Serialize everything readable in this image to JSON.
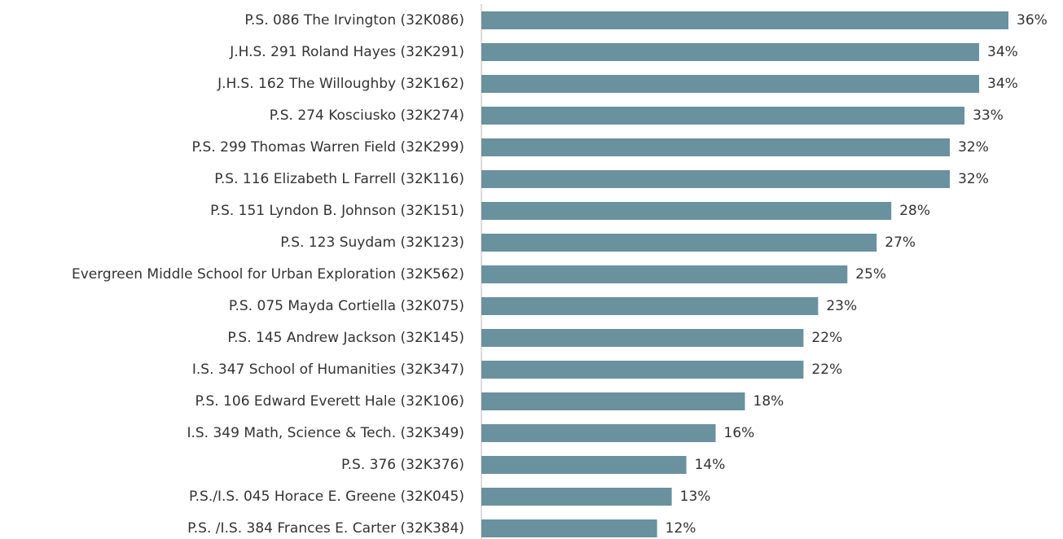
{
  "chart_data": {
    "type": "barh",
    "categories": [
      "P.S. 086 The Irvington (32K086)",
      "J.H.S. 291 Roland Hayes (32K291)",
      "J.H.S. 162 The Willoughby (32K162)",
      "P.S. 274 Kosciusko (32K274)",
      "P.S. 299 Thomas Warren Field (32K299)",
      "P.S. 116 Elizabeth L Farrell (32K116)",
      "P.S. 151 Lyndon B. Johnson (32K151)",
      "P.S. 123 Suydam (32K123)",
      "Evergreen Middle School for Urban Exploration (32K562)",
      "P.S. 075 Mayda Cortiella (32K075)",
      "P.S. 145 Andrew Jackson (32K145)",
      "I.S. 347 School of Humanities (32K347)",
      "P.S. 106 Edward Everett Hale (32K106)",
      "I.S. 349 Math, Science & Tech. (32K349)",
      "P.S. 376 (32K376)",
      "P.S./I.S. 045 Horace E. Greene (32K045)",
      "P.S. /I.S. 384 Frances E. Carter (32K384)"
    ],
    "values": [
      36,
      34,
      34,
      33,
      32,
      32,
      28,
      27,
      25,
      23,
      22,
      22,
      18,
      16,
      14,
      13,
      12
    ],
    "value_labels": [
      "36%",
      "34%",
      "34%",
      "33%",
      "32%",
      "32%",
      "28%",
      "27%",
      "25%",
      "23%",
      "22%",
      "22%",
      "18%",
      "16%",
      "14%",
      "13%",
      "12%"
    ],
    "color": "#6a919e"
  }
}
